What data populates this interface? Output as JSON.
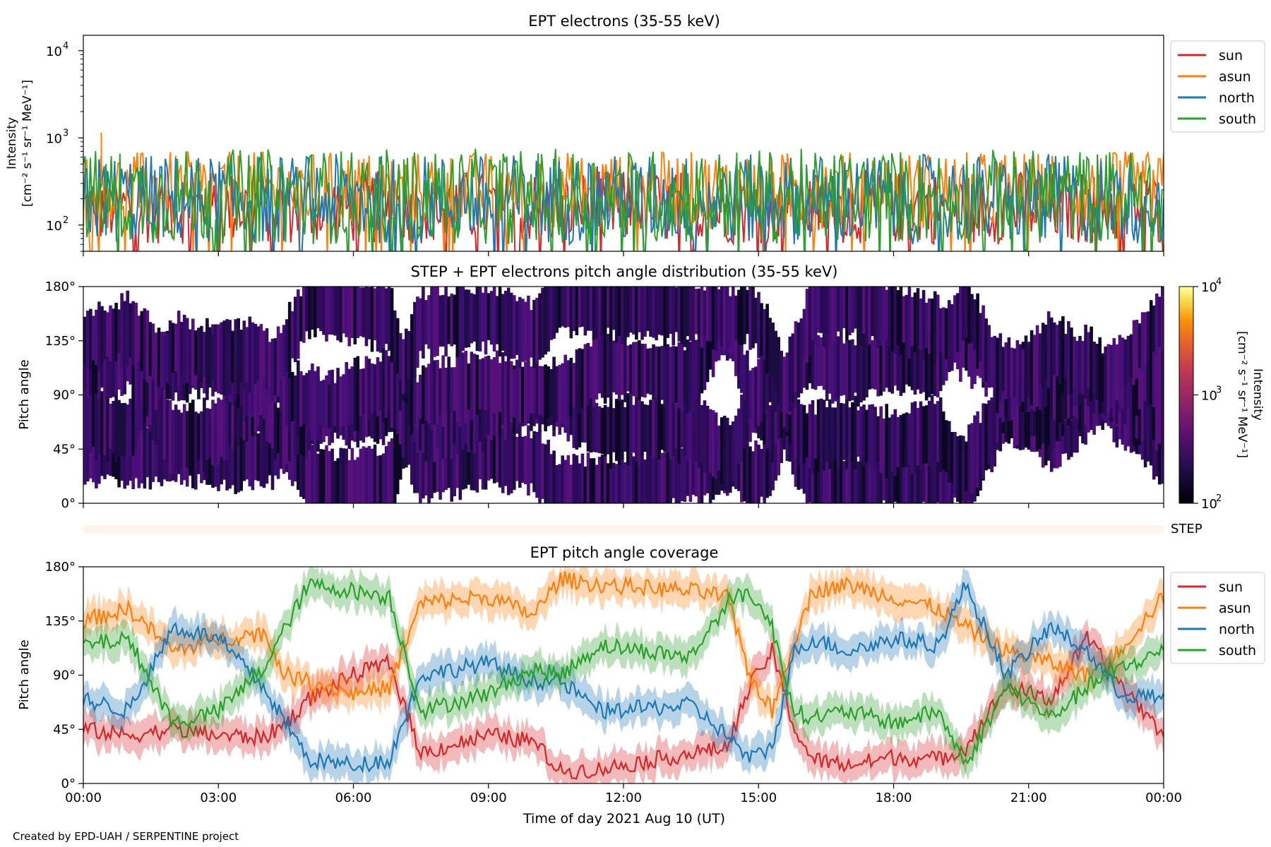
{
  "footer": "Created by EPD-UAH / SERPENTINE project",
  "colors": {
    "sun": "#d62728",
    "asun": "#ff7f0e",
    "north": "#1f77b4",
    "south": "#2ca02c",
    "step_bar": "#fff3ee"
  },
  "chart_data": [
    {
      "type": "line",
      "title": "EPT electrons (35-55 keV)",
      "ylabel_line1": "Intensity",
      "ylabel_line2": "[cm⁻² s⁻¹ sr⁻¹ MeV⁻¹]",
      "yscale": "log",
      "ylim": [
        50,
        15000
      ],
      "yticks": [
        {
          "value": 100,
          "base": "10",
          "exp": "2"
        },
        {
          "value": 1000,
          "base": "10",
          "exp": "3"
        },
        {
          "value": 10000,
          "base": "10",
          "exp": "4"
        }
      ],
      "xlim": [
        "00:00",
        "24:00"
      ],
      "legend_position": "outside-upper-right",
      "series": [
        {
          "name": "sun",
          "color": "#d62728",
          "typical_range": [
            60,
            420
          ]
        },
        {
          "name": "asun",
          "color": "#ff7f0e",
          "typical_range": [
            90,
            700
          ]
        },
        {
          "name": "north",
          "color": "#1f77b4",
          "typical_range": [
            60,
            650
          ]
        },
        {
          "name": "south",
          "color": "#2ca02c",
          "typical_range": [
            60,
            750
          ]
        }
      ],
      "peaks": [
        {
          "series": "asun",
          "x": "00:24",
          "y": 1150
        }
      ]
    },
    {
      "type": "heatmap",
      "title": "STEP + EPT electrons pitch angle distribution (35-55 keV)",
      "ylabel": "Pitch angle",
      "ylim": [
        0,
        180
      ],
      "yticks": [
        "0°",
        "45°",
        "90°",
        "135°",
        "180°"
      ],
      "colorbar": {
        "label_line1": "Intensity",
        "label_line2": "[cm⁻² s⁻¹ sr⁻¹ MeV⁻¹]",
        "scale": "log",
        "range": [
          100,
          10000
        ],
        "ticks": [
          {
            "value": 100,
            "base": "10",
            "exp": "2"
          },
          {
            "value": 1000,
            "base": "10",
            "exp": "3"
          },
          {
            "value": 10000,
            "base": "10",
            "exp": "4"
          }
        ],
        "colormap": "inferno"
      },
      "typical_intensity": 250
    },
    {
      "type": "bar",
      "label": "STEP",
      "note": "thin empty strip"
    },
    {
      "type": "area",
      "title": "EPT pitch angle coverage",
      "ylabel": "Pitch angle",
      "xlabel": "Time of day 2021 Aug 10 (UT)",
      "ylim": [
        0,
        180
      ],
      "yticks": [
        "0°",
        "45°",
        "90°",
        "135°",
        "180°"
      ],
      "xticks": [
        "00:00",
        "03:00",
        "06:00",
        "09:00",
        "12:00",
        "15:00",
        "18:00",
        "21:00",
        "00:00"
      ],
      "legend_position": "outside-upper-right",
      "series": [
        {
          "name": "sun",
          "color": "#d62728",
          "x_hours": [
            0,
            1,
            2,
            3,
            4,
            4.5,
            5,
            6,
            6.8,
            7.5,
            9,
            10,
            10.6,
            11.5,
            13.5,
            14.3,
            14.8,
            15.3,
            15.8,
            16.2,
            17,
            18,
            19,
            19.6,
            20.5,
            21.5,
            22.3,
            23,
            24
          ],
          "y": [
            45,
            40,
            45,
            40,
            38,
            50,
            70,
            90,
            100,
            25,
            40,
            35,
            10,
            12,
            25,
            30,
            80,
            110,
            45,
            20,
            15,
            22,
            20,
            30,
            80,
            70,
            120,
            85,
            40
          ]
        },
        {
          "name": "asun",
          "color": "#ff7f0e",
          "x_hours": [
            0,
            1,
            2,
            3,
            4,
            4.5,
            5,
            6,
            6.8,
            7.5,
            9,
            10,
            10.6,
            11.5,
            13.5,
            14.3,
            14.8,
            15.3,
            15.8,
            16.2,
            17,
            18,
            19,
            19.6,
            20.5,
            21.5,
            22.3,
            23,
            24
          ],
          "y": [
            135,
            145,
            110,
            120,
            125,
            90,
            85,
            75,
            80,
            150,
            155,
            140,
            170,
            165,
            160,
            155,
            90,
            60,
            120,
            160,
            165,
            155,
            145,
            130,
            110,
            100,
            90,
            110,
            155
          ]
        },
        {
          "name": "north",
          "color": "#1f77b4",
          "x_hours": [
            0,
            1,
            2,
            3,
            4,
            4.5,
            5,
            6,
            6.8,
            7.5,
            9,
            10,
            10.6,
            11.5,
            13.5,
            14.3,
            14.8,
            15.3,
            15.8,
            16.2,
            17,
            18,
            19,
            19.6,
            20.5,
            21.5,
            22.3,
            23,
            24
          ],
          "y": [
            70,
            60,
            130,
            120,
            80,
            50,
            20,
            15,
            20,
            90,
            100,
            85,
            85,
            60,
            65,
            40,
            20,
            30,
            110,
            120,
            110,
            120,
            115,
            165,
            90,
            130,
            110,
            75,
            70
          ]
        },
        {
          "name": "south",
          "color": "#2ca02c",
          "x_hours": [
            0,
            1,
            2,
            3,
            4,
            4.5,
            5,
            6,
            6.8,
            7.5,
            9,
            10,
            10.6,
            11.5,
            13.5,
            14.3,
            14.8,
            15.3,
            15.8,
            16.2,
            17,
            18,
            19,
            19.6,
            20.5,
            21.5,
            22.3,
            23,
            24
          ],
          "y": [
            115,
            120,
            50,
            60,
            95,
            130,
            165,
            160,
            155,
            60,
            75,
            95,
            90,
            115,
            105,
            150,
            160,
            130,
            60,
            55,
            60,
            50,
            60,
            15,
            80,
            55,
            80,
            95,
            110
          ]
        }
      ]
    }
  ]
}
